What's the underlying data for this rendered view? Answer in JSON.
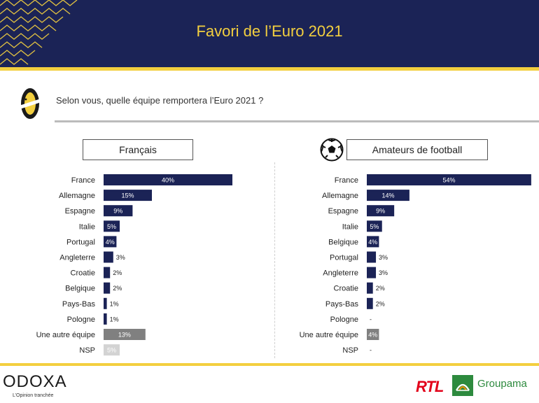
{
  "header": {
    "title": "Favori de l’Euro 2021"
  },
  "question": "Selon vous, quelle équipe remportera l’Euro 2021 ?",
  "footer": {
    "odoxa_logo": "ODOXA",
    "odoxa_tagline": "L’Opinion tranchée",
    "rtl_logo": "RTL",
    "groupama_logo": "Groupama"
  },
  "colors": {
    "navy": "#1b2356",
    "yellow": "#f3cf3f",
    "other": "#808080",
    "nsp": "#d3d3d3"
  },
  "chart_data": [
    {
      "type": "bar",
      "orientation": "horizontal",
      "title": "Français",
      "categories": [
        "France",
        "Allemagne",
        "Espagne",
        "Italie",
        "Portugal",
        "Angleterre",
        "Croatie",
        "Belgique",
        "Pays-Bas",
        "Pologne",
        "Une autre équipe",
        "NSP"
      ],
      "values": [
        40,
        15,
        9,
        5,
        4,
        3,
        2,
        2,
        1,
        1,
        13,
        5
      ],
      "labels": [
        "40%",
        "15%",
        "9%",
        "5%",
        "4%",
        "3%",
        "2%",
        "2%",
        "1%",
        "1%",
        "13%",
        "5%"
      ],
      "unit": "%"
    },
    {
      "type": "bar",
      "orientation": "horizontal",
      "title": "Amateurs de football",
      "categories": [
        "France",
        "Allemagne",
        "Espagne",
        "Italie",
        "Belgique",
        "Portugal",
        "Angleterre",
        "Croatie",
        "Pays-Bas",
        "Pologne",
        "Une autre équipe",
        "NSP"
      ],
      "values": [
        54,
        14,
        9,
        5,
        4,
        3,
        3,
        2,
        2,
        0,
        4,
        0
      ],
      "labels": [
        "54%",
        "14%",
        "9%",
        "5%",
        "4%",
        "3%",
        "3%",
        "2%",
        "2%",
        "-",
        "4%",
        "-"
      ],
      "unit": "%"
    }
  ]
}
